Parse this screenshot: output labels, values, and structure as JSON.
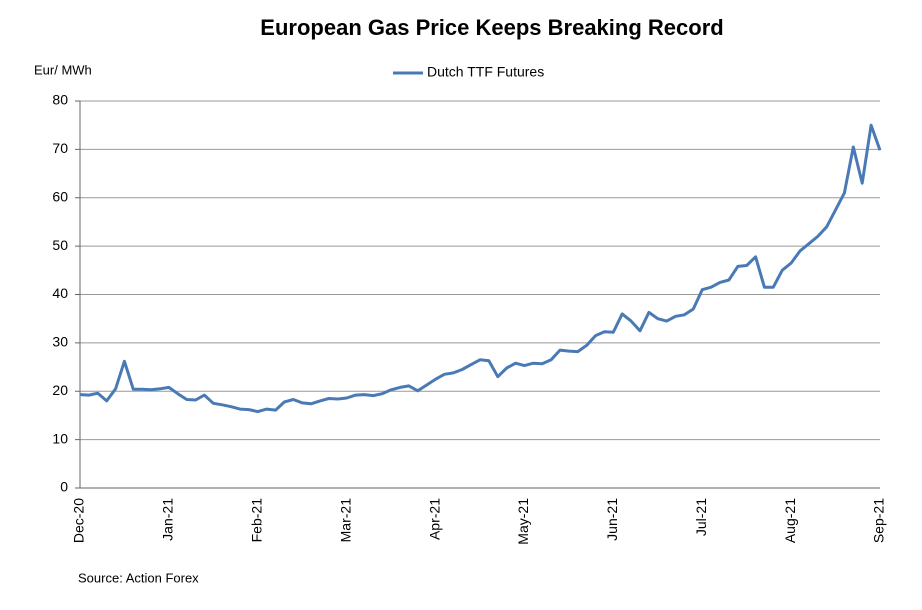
{
  "chart_data": {
    "type": "line",
    "title": "European Gas Price Keeps Breaking Record",
    "y_label": "Eur/ MWh",
    "source": "Source: Action Forex",
    "categories": [
      "Dec-20",
      null,
      null,
      null,
      null,
      null,
      null,
      null,
      null,
      null,
      "Jan-21",
      null,
      null,
      null,
      null,
      null,
      null,
      null,
      null,
      null,
      "Feb-21",
      null,
      null,
      null,
      null,
      null,
      null,
      null,
      null,
      null,
      "Mar-21",
      null,
      null,
      null,
      null,
      null,
      null,
      null,
      null,
      null,
      "Apr-21",
      null,
      null,
      null,
      null,
      null,
      null,
      null,
      null,
      null,
      "May-21",
      null,
      null,
      null,
      null,
      null,
      null,
      null,
      null,
      null,
      "Jun-21",
      null,
      null,
      null,
      null,
      null,
      null,
      null,
      null,
      null,
      "Jul-21",
      null,
      null,
      null,
      null,
      null,
      null,
      null,
      null,
      null,
      "Aug-21",
      null,
      null,
      null,
      null,
      null,
      null,
      null,
      null,
      null,
      "Sep-21"
    ],
    "series": [
      {
        "name": "Dutch TTF Futures",
        "color": "#4a7ab5",
        "values": [
          19.3,
          19.2,
          19.6,
          18,
          20.5,
          26.2,
          20.4,
          20.4,
          20.3,
          20.5,
          20.8,
          19.5,
          18.3,
          18.2,
          19.2,
          17.5,
          17.2,
          16.8,
          16.3,
          16.2,
          15.8,
          16.3,
          16.1,
          17.8,
          18.3,
          17.6,
          17.4,
          18,
          18.5,
          18.4,
          18.6,
          19.2,
          19.3,
          19.1,
          19.5,
          20.3,
          20.8,
          21.1,
          20.1,
          21.3,
          22.5,
          23.5,
          23.8,
          24.5,
          25.5,
          26.5,
          26.3,
          23,
          24.8,
          25.8,
          25.3,
          25.8,
          25.7,
          26.5,
          28.5,
          28.3,
          28.2,
          29.5,
          31.5,
          32.3,
          32.2,
          36,
          34.5,
          32.5,
          36.3,
          35,
          34.5,
          35.5,
          35.8,
          37,
          41,
          41.5,
          42.5,
          43,
          45.8,
          46,
          47.8,
          41.5,
          41.5,
          45,
          46.5,
          49,
          50.5,
          52,
          54,
          57.5,
          61,
          70.5,
          63,
          75,
          69.8
        ]
      }
    ],
    "ylim": [
      0,
      80
    ],
    "yticks": [
      0,
      10,
      20,
      30,
      40,
      50,
      60,
      70,
      80
    ],
    "grid": true
  }
}
